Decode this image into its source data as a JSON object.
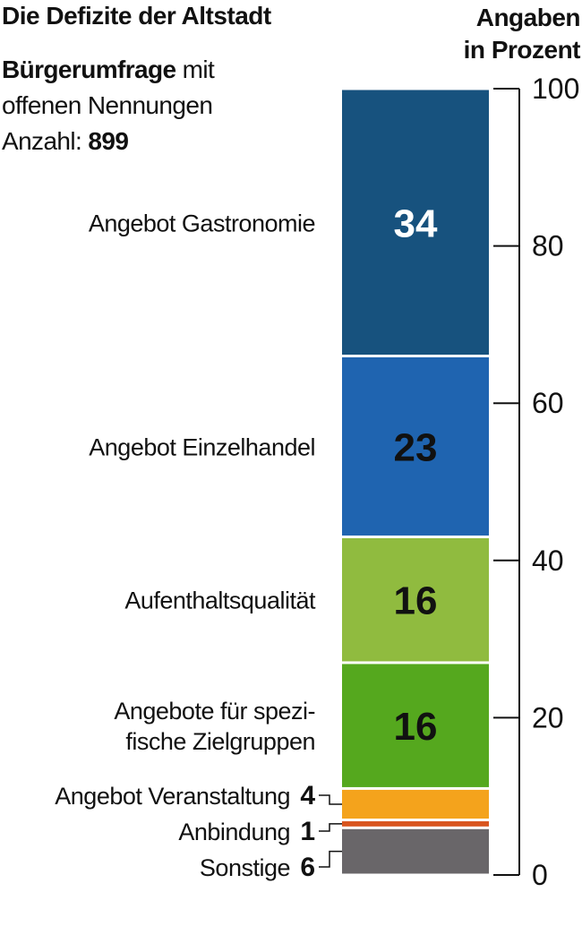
{
  "header": {
    "title": "Die Defizite der Altstadt",
    "unit_line1": "Angaben",
    "unit_line2": "in Prozent",
    "subtitle_bold": "Bürgerumfrage",
    "subtitle_rest1": " mit",
    "subtitle_line2": "offenen Nennungen",
    "count_label": "Anzahl: ",
    "count_value": "899"
  },
  "chart_data": {
    "type": "bar",
    "stacked": true,
    "title": "Die Defizite der Altstadt",
    "ylabel": "Angaben in Prozent",
    "ylim": [
      0,
      100
    ],
    "yticks": [
      0,
      20,
      40,
      60,
      80,
      100
    ],
    "segments": [
      {
        "name": "Sonstige",
        "value": 6,
        "color": "#696669",
        "value_inside": false,
        "label_lines": [
          "Sonstige"
        ]
      },
      {
        "name": "Anbindung",
        "value": 1,
        "color": "#d9541e",
        "value_inside": false,
        "label_lines": [
          "Anbindung"
        ]
      },
      {
        "name": "Angebot Veranstaltung",
        "value": 4,
        "color": "#f4a31c",
        "value_inside": false,
        "label_lines": [
          "Angebot Veranstaltung"
        ]
      },
      {
        "name": "Angebote für spezifische Zielgruppen",
        "value": 16,
        "color": "#55a81e",
        "value_inside": true,
        "label_lines": [
          "Angebote für spezi-",
          "fische Zielgruppen"
        ]
      },
      {
        "name": "Aufenthaltsqualität",
        "value": 16,
        "color": "#90bb3f",
        "value_inside": true,
        "label_lines": [
          "Aufenthaltsqualität"
        ]
      },
      {
        "name": "Angebot Einzelhandel",
        "value": 23,
        "color": "#1f64b0",
        "value_inside": true,
        "label_lines": [
          "Angebot Einzelhandel"
        ]
      },
      {
        "name": "Angebot Gastronomie",
        "value": 34,
        "color": "#17527e",
        "value_inside": true,
        "value_color": "#ffffff",
        "label_lines": [
          "Angebot Gastronomie"
        ]
      }
    ]
  }
}
